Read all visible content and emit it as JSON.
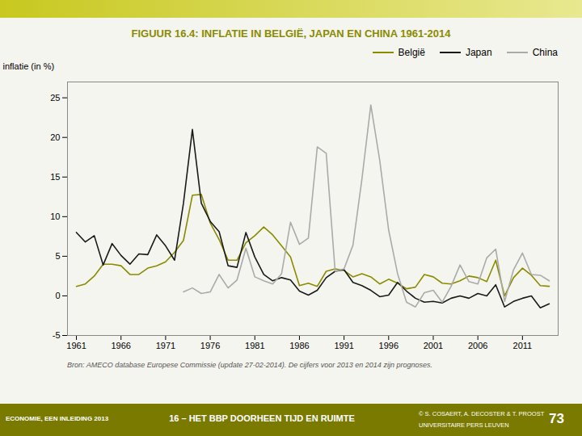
{
  "chart_data": {
    "type": "line",
    "title": "FIGUUR 16.4: INFLATIE IN BELGIË, JAPAN EN CHINA 1961-2014",
    "ylabel": "inflatie (in %)",
    "annotations": [
      "Bron: AMECO database   Europese Commissie (update 27-02-2014). De cijfers voor 2013 en 2014 zijn prognoses.",
      "ECONOMIE, EEN INLEIDING 2013",
      "16 – HET BBP DOORHEEN TIJD EN RUIMTE",
      "© S. COSAERT, A. DECOSTER & T. PROOST",
      "UNIVERSITAIRE PERS LEUVEN",
      "73"
    ],
    "x": [
      1961,
      1962,
      1963,
      1964,
      1965,
      1966,
      1967,
      1968,
      1969,
      1970,
      1971,
      1972,
      1973,
      1974,
      1975,
      1976,
      1977,
      1978,
      1979,
      1980,
      1981,
      1982,
      1983,
      1984,
      1985,
      1986,
      1987,
      1988,
      1989,
      1990,
      1991,
      1992,
      1993,
      1994,
      1995,
      1996,
      1997,
      1998,
      1999,
      2000,
      2001,
      2002,
      2003,
      2004,
      2005,
      2006,
      2007,
      2008,
      2009,
      2010,
      2011,
      2012,
      2013,
      2014
    ],
    "series": [
      {
        "name": "België",
        "color": "#8B8B00",
        "values": [
          1.2,
          1.5,
          2.5,
          4.0,
          4.0,
          3.8,
          2.7,
          2.7,
          3.5,
          3.8,
          4.3,
          5.5,
          7.0,
          12.7,
          12.8,
          9.2,
          7.1,
          4.5,
          4.5,
          6.7,
          7.6,
          8.7,
          7.7,
          6.3,
          4.9,
          1.3,
          1.6,
          1.2,
          3.1,
          3.4,
          3.2,
          2.4,
          2.8,
          2.4,
          1.5,
          2.1,
          1.6,
          0.9,
          1.1,
          2.7,
          2.4,
          1.6,
          1.5,
          1.9,
          2.5,
          2.3,
          1.8,
          4.5,
          0.0,
          2.3,
          3.5,
          2.6,
          1.3,
          1.2
        ]
      },
      {
        "name": "Japan",
        "color": "#1a1a1a",
        "values": [
          8.0,
          6.8,
          7.6,
          3.9,
          6.6,
          5.1,
          4.0,
          5.3,
          5.2,
          7.7,
          6.3,
          4.5,
          11.7,
          21.0,
          11.7,
          9.4,
          8.1,
          3.8,
          3.6,
          8.0,
          4.9,
          2.7,
          1.9,
          2.3,
          2.0,
          0.6,
          0.1,
          0.7,
          2.3,
          3.1,
          3.3,
          1.7,
          1.3,
          0.7,
          -0.1,
          0.1,
          1.7,
          0.6,
          -0.3,
          -0.8,
          -0.7,
          -0.9,
          -0.3,
          0.0,
          -0.3,
          0.3,
          0.0,
          1.4,
          -1.4,
          -0.7,
          -0.3,
          0.0,
          -1.5,
          -1.0
        ]
      },
      {
        "name": "China",
        "color": "#aaaaaa",
        "values": [
          null,
          null,
          null,
          null,
          null,
          null,
          null,
          null,
          null,
          null,
          null,
          null,
          0.5,
          1.0,
          0.3,
          0.5,
          2.7,
          1.0,
          2.0,
          6.0,
          2.4,
          1.9,
          1.5,
          2.8,
          9.3,
          6.5,
          7.3,
          18.8,
          18.0,
          3.1,
          3.4,
          6.4,
          14.7,
          24.1,
          17.1,
          8.3,
          2.8,
          -0.8,
          -1.4,
          0.4,
          0.7,
          -0.8,
          1.2,
          3.9,
          1.8,
          1.5,
          4.8,
          5.9,
          -0.7,
          3.3,
          5.4,
          2.7,
          2.6,
          1.9
        ]
      }
    ],
    "xlim": [
      1960,
      2015
    ],
    "xticks": [
      1961,
      1966,
      1971,
      1976,
      1981,
      1986,
      1991,
      1996,
      2001,
      2006,
      2011
    ],
    "ylim": [
      -5,
      27
    ],
    "yticks": [
      -5,
      0,
      5,
      10,
      15,
      20,
      25
    ],
    "grid": false,
    "legend": "upper right"
  }
}
